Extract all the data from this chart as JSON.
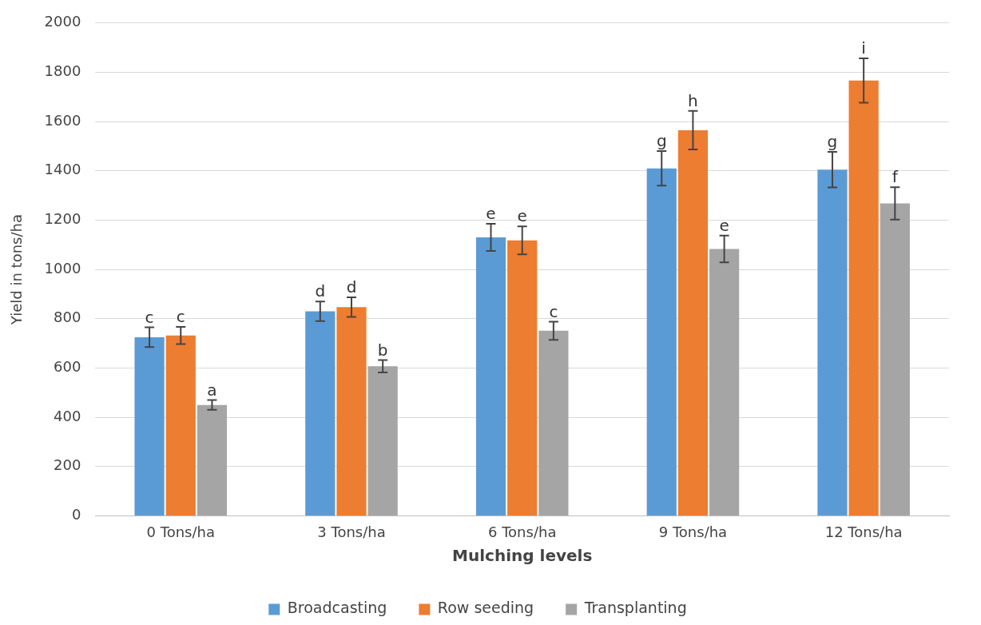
{
  "chart_data": {
    "type": "bar",
    "xlabel": "Mulching levels",
    "ylabel": "Yield in tons/ha",
    "categories": [
      "0 Tons/ha",
      "3 Tons/ha",
      "6 Tons/ha",
      "9 Tons/ha",
      "12 Tons/ha"
    ],
    "series": [
      {
        "name": "Broadcasting",
        "color": "#5b9bd5",
        "values": [
          725,
          830,
          1130,
          1410,
          1405
        ],
        "errors": [
          40,
          40,
          55,
          70,
          72
        ],
        "value_labels": [
          "c",
          "d",
          "e",
          "g",
          "g"
        ]
      },
      {
        "name": "Row seeding",
        "color": "#ed7d31",
        "values": [
          732,
          847,
          1118,
          1565,
          1767
        ],
        "errors": [
          35,
          40,
          57,
          78,
          90
        ],
        "value_labels": [
          "c",
          "d",
          "e",
          "h",
          "i"
        ]
      },
      {
        "name": "Transplanting",
        "color": "#a5a5a5",
        "values": [
          450,
          607,
          751,
          1083,
          1268
        ],
        "errors": [
          20,
          25,
          37,
          54,
          66
        ],
        "value_labels": [
          "a",
          "b",
          "c",
          "e",
          "f"
        ]
      }
    ],
    "ylim": [
      0,
      2000
    ],
    "yticks": [
      0,
      200,
      400,
      600,
      800,
      1000,
      1200,
      1400,
      1600,
      1800,
      2000
    ],
    "grid": "y",
    "legend": "bottom"
  }
}
